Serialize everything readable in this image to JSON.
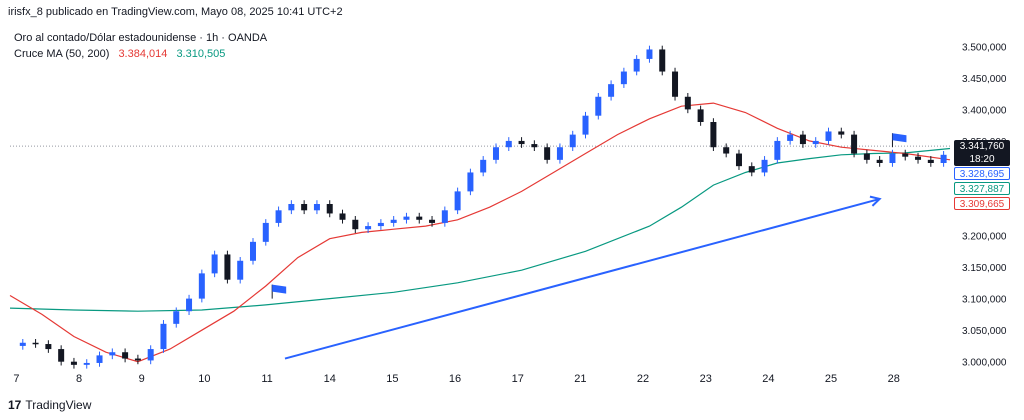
{
  "caption": "irisfx_8 publicado en TradingView.com, Mayo 08, 2025 10:41 UTC+2",
  "legend": {
    "symbol_line": "Oro al contado/Dólar estadounidense · 1h · OANDA",
    "ma_label": "Cruce MA (50, 200)",
    "ma50_value": "3.384,014",
    "ma200_value": "3.310,505"
  },
  "price_labels": {
    "current_price": "3.341,760",
    "countdown": "18:20",
    "blue": "3.328,695",
    "green": "3.327,887",
    "red": "3.309,665"
  },
  "footer": {
    "brand": "TradingView",
    "logo_text": "17"
  },
  "colors": {
    "up": "#2962ff",
    "down": "#131722",
    "ma50": "#e53935",
    "ma200": "#089981",
    "arrow": "#2962ff"
  },
  "chart_data": {
    "type": "line",
    "title": "",
    "y_ticks": [
      "3.500,000",
      "3.450,000",
      "3.400,000",
      "3.350,000",
      "3.300,000",
      "3.250,000",
      "3.200,000",
      "3.150,000",
      "3.100,000",
      "3.050,000",
      "3.000,000"
    ],
    "y_tick_values": [
      3500,
      3450,
      3400,
      3350,
      3300,
      3250,
      3200,
      3150,
      3100,
      3050,
      3000
    ],
    "x_ticks": [
      "7",
      "8",
      "9",
      "10",
      "11",
      "14",
      "15",
      "16",
      "17",
      "21",
      "22",
      "23",
      "24",
      "25",
      "28"
    ],
    "x_tick_index": [
      0,
      1,
      2,
      3,
      4,
      5,
      6,
      7,
      8,
      9,
      10,
      11,
      12,
      13,
      14
    ],
    "ylim": [
      2990,
      3510
    ],
    "xlim": [
      0,
      14.7
    ],
    "price_series": {
      "name": "",
      "x": [
        0,
        0.2,
        0.4,
        0.6,
        0.8,
        1.0,
        1.2,
        1.4,
        1.6,
        1.8,
        2.0,
        2.2,
        2.4,
        2.6,
        2.8,
        3.0,
        3.2,
        3.4,
        3.6,
        3.8,
        4.0,
        4.2,
        4.4,
        4.6,
        4.8,
        5.0,
        5.2,
        5.4,
        5.6,
        5.8,
        6.0,
        6.2,
        6.4,
        6.6,
        6.8,
        7.0,
        7.2,
        7.4,
        7.6,
        7.8,
        8.0,
        8.2,
        8.4,
        8.6,
        8.8,
        9.0,
        9.2,
        9.4,
        9.6,
        9.8,
        10.0,
        10.2,
        10.4,
        10.6,
        10.8,
        11.0,
        11.2,
        11.4,
        11.6,
        11.8,
        12.0,
        12.2,
        12.4,
        12.6,
        12.8,
        13.0,
        13.2,
        13.4,
        13.6,
        13.8,
        14.0,
        14.2,
        14.4,
        14.6
      ],
      "values": [
        3025,
        3030,
        3028,
        3020,
        3000,
        2995,
        2998,
        3010,
        3015,
        3005,
        3002,
        3020,
        3060,
        3080,
        3100,
        3140,
        3170,
        3130,
        3160,
        3190,
        3220,
        3240,
        3250,
        3240,
        3250,
        3235,
        3225,
        3210,
        3215,
        3220,
        3225,
        3230,
        3225,
        3220,
        3240,
        3270,
        3300,
        3320,
        3340,
        3350,
        3345,
        3340,
        3320,
        3340,
        3360,
        3390,
        3420,
        3440,
        3460,
        3480,
        3495,
        3460,
        3420,
        3400,
        3380,
        3340,
        3330,
        3310,
        3300,
        3320,
        3350,
        3360,
        3345,
        3350,
        3365,
        3360,
        3330,
        3320,
        3315,
        3330,
        3325,
        3320,
        3315,
        3328
      ]
    },
    "ma50_series": {
      "x": [
        0,
        0.5,
        1.0,
        1.5,
        2.0,
        2.5,
        3.0,
        3.5,
        4.0,
        4.5,
        5.0,
        5.5,
        6.0,
        6.5,
        7.0,
        7.5,
        8.0,
        8.5,
        9.0,
        9.5,
        10.0,
        10.5,
        11.0,
        11.5,
        12.0,
        12.5,
        13.0,
        13.5,
        14.0,
        14.7
      ],
      "values": [
        3105,
        3075,
        3040,
        3015,
        3000,
        3020,
        3050,
        3080,
        3120,
        3165,
        3195,
        3205,
        3210,
        3215,
        3225,
        3245,
        3270,
        3300,
        3330,
        3360,
        3385,
        3405,
        3410,
        3395,
        3370,
        3350,
        3340,
        3335,
        3330,
        3320
      ]
    },
    "ma200_series": {
      "x": [
        0,
        1.0,
        2.0,
        3.0,
        4.0,
        5.0,
        6.0,
        7.0,
        8.0,
        9.0,
        10.0,
        10.5,
        11.0,
        11.5,
        12.0,
        12.5,
        13.0,
        13.5,
        14.0,
        14.7
      ],
      "values": [
        3085,
        3082,
        3080,
        3082,
        3090,
        3100,
        3110,
        3125,
        3145,
        3175,
        3215,
        3245,
        3280,
        3300,
        3315,
        3322,
        3328,
        3330,
        3331,
        3338
      ]
    },
    "arrow": {
      "from_x": 4.3,
      "from_y": 3005,
      "to_x": 13.6,
      "to_y": 3258
    },
    "flags": [
      {
        "x": 4.1,
        "y": 3100
      },
      {
        "x": 13.8,
        "y": 3340
      }
    ],
    "current_price_value": 3341.76
  }
}
